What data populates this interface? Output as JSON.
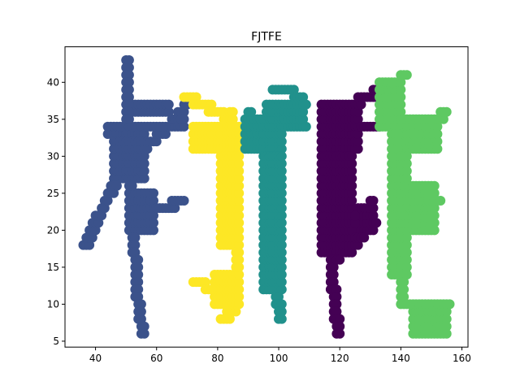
{
  "chart_data": {
    "type": "scatter",
    "title": "FJTFE",
    "xlabel": "",
    "ylabel": "",
    "xlim": [
      30,
      162
    ],
    "ylim": [
      4.2,
      44.8
    ],
    "xticks": [
      40,
      60,
      80,
      100,
      120,
      140,
      160
    ],
    "yticks": [
      5,
      10,
      15,
      20,
      25,
      30,
      35,
      40
    ],
    "grid": false,
    "legend": "none",
    "series": [
      {
        "color": "#3b528b",
        "strokes": [
          [
            [
              49.5,
              43
            ],
            [
              50,
              36
            ],
            [
              50.5,
              28
            ],
            [
              51.5,
              22
            ],
            [
              52.5,
              16
            ],
            [
              53.5,
              10
            ],
            [
              55,
              6
            ]
          ],
          [
            [
              55,
              22
            ],
            [
              68,
              24
            ]
          ],
          [
            [
              36,
              18
            ],
            [
              44,
              25
            ],
            [
              52,
              30
            ],
            [
              64,
              34
            ],
            [
              69,
              37
            ]
          ],
          [
            [
              46,
              34
            ],
            [
              68,
              34.5
            ]
          ]
        ],
        "regions": [
          [
            [
              44,
              33,
              56,
              34
            ]
          ],
          [
            [
              46,
              26.5,
              56,
              33
            ]
          ],
          [
            [
              51,
              19.5,
              59,
              24.5
            ]
          ],
          [
            [
              52,
              36,
              64,
              37
            ]
          ]
        ]
      },
      {
        "color": "#fde725",
        "strokes": [
          [
            [
              69,
              38
            ],
            [
              74,
              37
            ],
            [
              79,
              36
            ],
            [
              83,
              35
            ]
          ],
          [
            [
              75,
              33
            ],
            [
              84,
              31
            ]
          ],
          [
            [
              84,
              36
            ],
            [
              85,
              30
            ],
            [
              85.5,
              24
            ],
            [
              86,
              18
            ],
            [
              86,
              13
            ],
            [
              85,
              9
            ],
            [
              81,
              8
            ]
          ],
          [
            [
              72,
              13
            ],
            [
              78,
              12
            ],
            [
              82,
              11
            ]
          ]
        ],
        "regions": [
          [
            [
              72,
              30.5,
              87,
              33.5
            ]
          ],
          [
            [
              79,
              10,
              87,
              14
            ]
          ],
          [
            [
              81,
              18,
              87,
              30
            ]
          ]
        ]
      },
      {
        "color": "#21918c",
        "strokes": [
          [
            [
              98,
              39
            ],
            [
              104,
              38.5
            ],
            [
              108,
              37
            ]
          ],
          [
            [
              90,
              35.5
            ],
            [
              96,
              35
            ],
            [
              101,
              34.5
            ],
            [
              108,
              34
            ]
          ],
          [
            [
              96,
              34
            ],
            [
              97,
              26
            ],
            [
              98,
              18
            ],
            [
              99,
              11
            ],
            [
              100,
              8
            ]
          ]
        ],
        "regions": [
          [
            [
              89,
              31,
              101,
              35
            ]
          ],
          [
            [
              96,
              33.5,
              108,
              37
            ]
          ],
          [
            [
              95,
              12,
              101,
              30
            ]
          ]
        ]
      },
      {
        "color": "#440154",
        "strokes": [
          [
            [
              116,
              37
            ],
            [
              126,
              37.5
            ],
            [
              131,
              38.5
            ],
            [
              133,
              39
            ]
          ],
          [
            [
              116,
              35
            ],
            [
              124,
              34.5
            ],
            [
              132,
              33.5
            ]
          ],
          [
            [
              115,
              30
            ],
            [
              116,
              22
            ],
            [
              117,
              14
            ],
            [
              118,
              9
            ],
            [
              119,
              6
            ]
          ],
          [
            [
              118,
              20
            ],
            [
              125,
              21.5
            ],
            [
              130,
              23.5
            ]
          ],
          [
            [
              118,
              16
            ],
            [
              126,
              19
            ],
            [
              131,
              21
            ]
          ]
        ],
        "regions": [
          [
            [
              114,
              31,
              126,
              37
            ]
          ],
          [
            [
              114,
              17,
              124,
              30
            ]
          ],
          [
            [
              126,
              20,
              131,
              23
            ]
          ]
        ]
      },
      {
        "color": "#5ec962",
        "strokes": [
          [
            [
              133,
              38
            ],
            [
              138,
              40
            ],
            [
              141,
              41
            ]
          ],
          [
            [
              134,
              35
            ],
            [
              142,
              34.5
            ],
            [
              150,
              34
            ],
            [
              154,
              36
            ]
          ],
          [
            [
              138,
              33
            ],
            [
              138.5,
              26
            ],
            [
              139,
              19
            ],
            [
              139.5,
              13
            ],
            [
              140,
              10
            ]
          ],
          [
            [
              140,
              23
            ],
            [
              150,
              23.5
            ],
            [
              152,
              24
            ]
          ],
          [
            [
              141,
              10
            ],
            [
              148,
              9
            ],
            [
              155,
              10
            ]
          ],
          [
            [
              145,
              7
            ],
            [
              150,
              6
            ],
            [
              154,
              6
            ]
          ]
        ],
        "regions": [
          [
            [
              133,
              34,
              140,
              40
            ]
          ],
          [
            [
              140,
              31,
              152,
              35
            ]
          ],
          [
            [
              137,
              14,
              142,
              33
            ]
          ],
          [
            [
              140,
              19.5,
              151,
              26
            ]
          ],
          [
            [
              144,
              6,
              155,
              10
            ]
          ]
        ]
      }
    ]
  }
}
